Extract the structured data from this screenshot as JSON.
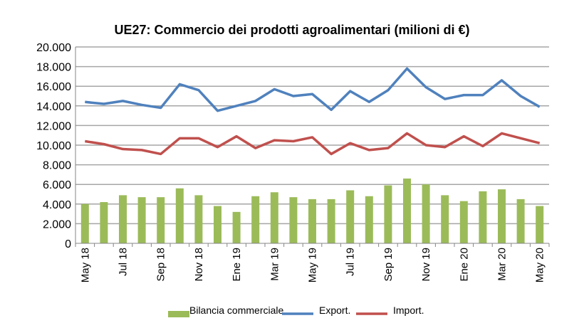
{
  "chart_data": {
    "type": "bar+line",
    "title": "UE27: Commercio dei prodotti agroalimentari (milioni di €)",
    "xlabel": "",
    "ylabel": "",
    "ylim": [
      0,
      20000
    ],
    "grid": true,
    "legend_position": "bottom",
    "y_ticks": [
      "0",
      "2.000",
      "4.000",
      "6.000",
      "8.000",
      "10.000",
      "12.000",
      "14.000",
      "16.000",
      "18.000",
      "20.000"
    ],
    "x_tick_labels": [
      "May 18",
      "Jul 18",
      "Sep 18",
      "Nov 18",
      "Ene 19",
      "Mar 19",
      "May 19",
      "Jul 19",
      "Sep 19",
      "Nov 19",
      "Ene 20",
      "Mar 20",
      "May 20"
    ],
    "colors": {
      "bilancia": "#9bbb59",
      "export": "#4f81bd",
      "import": "#c0504d"
    },
    "series": [
      {
        "name": "Bilancia commerciale",
        "kind": "bar",
        "values": [
          4000,
          4200,
          4900,
          4700,
          4700,
          5600,
          4900,
          3800,
          3200,
          4800,
          5200,
          4700,
          4500,
          4500,
          5400,
          4800,
          5900,
          6600,
          6000,
          4900,
          4300,
          5300,
          5500,
          4500,
          3800
        ]
      },
      {
        "name": "Export.",
        "kind": "line",
        "values": [
          14400,
          14200,
          14500,
          14100,
          13800,
          16200,
          15600,
          13500,
          14000,
          14500,
          15700,
          15000,
          15200,
          13600,
          15500,
          14400,
          15600,
          17800,
          15900,
          14700,
          15100,
          15100,
          16600,
          15000,
          13900
        ]
      },
      {
        "name": "Import.",
        "kind": "line",
        "values": [
          10400,
          10100,
          9600,
          9500,
          9100,
          10700,
          10700,
          9800,
          10900,
          9700,
          10500,
          10400,
          10800,
          9100,
          10200,
          9500,
          9700,
          11200,
          10000,
          9800,
          10900,
          9900,
          11200,
          10700,
          10200
        ]
      }
    ]
  }
}
